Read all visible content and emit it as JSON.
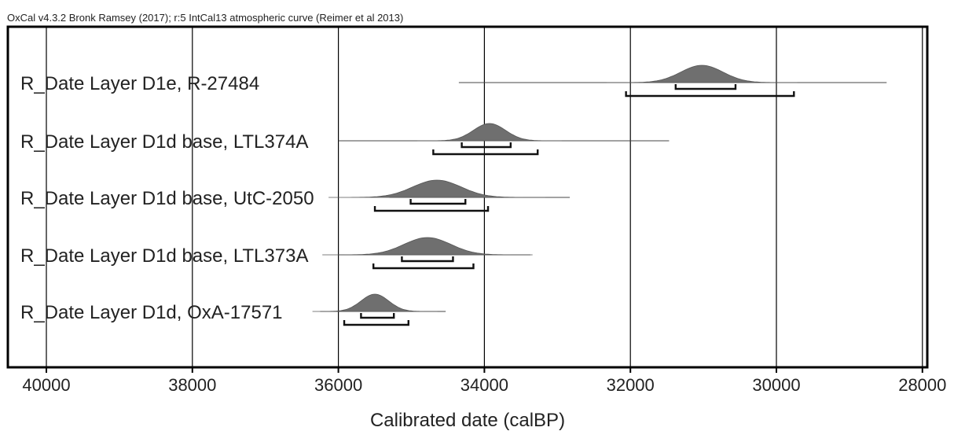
{
  "header": "OxCal v4.3.2 Bronk Ramsey (2017); r:5 IntCal13 atmospheric curve (Reimer et al 2013)",
  "chart_data": {
    "type": "area",
    "x_axis_reversed": true,
    "xlim": [
      40500,
      27900
    ],
    "xlabel": "Calibrated date (calBP)",
    "xticks": [
      40000,
      38000,
      36000,
      34000,
      32000,
      30000,
      28000
    ],
    "grid": "vertical lines at ticks",
    "color": "#6f6f6f",
    "series": [
      {
        "name": "R_Date Layer D1e, R-27484",
        "peak": 31020,
        "sigma": 290,
        "range_line": [
          34350,
          28490
        ],
        "range_68": [
          31380,
          30560
        ],
        "range_95": [
          32060,
          29760
        ]
      },
      {
        "name": "R_Date Layer D1d base, LTL374A",
        "peak": 33930,
        "sigma": 220,
        "range_line": [
          36000,
          31470
        ],
        "range_68": [
          34310,
          33640
        ],
        "range_95": [
          34700,
          33270
        ]
      },
      {
        "name": "R_Date Layer D1d base, UtC-2050",
        "peak": 34650,
        "sigma": 330,
        "range_line": [
          35300,
          32830
        ],
        "range_68": [
          35010,
          34260
        ],
        "range_95": [
          35500,
          33950
        ]
      },
      {
        "name": "R_Date Layer D1d base, LTL373A",
        "peak": 34780,
        "sigma": 320,
        "range_line": [
          36000,
          33370
        ],
        "range_68": [
          35130,
          34430
        ],
        "range_95": [
          35520,
          34150
        ]
      },
      {
        "name": "R_Date Layer D1d, OxA-17571",
        "peak": 35500,
        "sigma": 190,
        "range_line": [
          36250,
          34530
        ],
        "range_68": [
          35690,
          35240
        ],
        "range_95": [
          35920,
          35040
        ]
      }
    ]
  }
}
